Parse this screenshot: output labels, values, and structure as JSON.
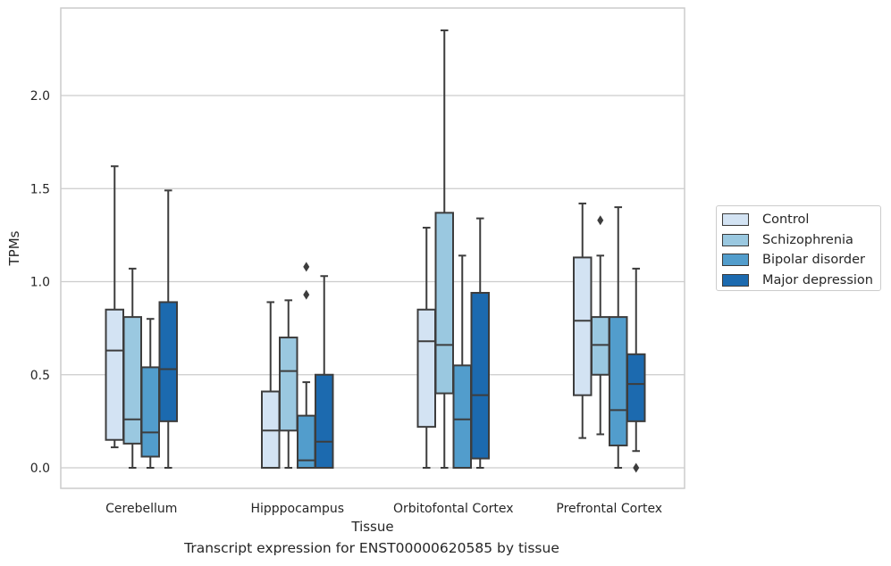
{
  "chart_data": {
    "type": "box",
    "title": "Transcript expression for ENST00000620585 by tissue",
    "xlabel": "Tissue",
    "ylabel": "TPMs",
    "ylim": [
      -0.11,
      2.48
    ],
    "yticks": [
      "0.0",
      "0.5",
      "1.0",
      "1.5",
      "2.0"
    ],
    "grid": "horizontal",
    "legend_position": "outside right",
    "categories": [
      "Cerebellum",
      "Hipppocampus",
      "Orbitofontal Cortex",
      "Prefrontal Cortex"
    ],
    "series": [
      {
        "name": "Control",
        "color": "#d3e3f3",
        "boxes": [
          {
            "whisker_low": 0.11,
            "q1": 0.15,
            "median": 0.63,
            "q3": 0.85,
            "whisker_high": 1.62,
            "outliers": []
          },
          {
            "whisker_low": 0.0,
            "q1": 0.0,
            "median": 0.2,
            "q3": 0.41,
            "whisker_high": 0.89,
            "outliers": []
          },
          {
            "whisker_low": 0.0,
            "q1": 0.22,
            "median": 0.68,
            "q3": 0.85,
            "whisker_high": 1.29,
            "outliers": []
          },
          {
            "whisker_low": 0.16,
            "q1": 0.39,
            "median": 0.79,
            "q3": 1.13,
            "whisker_high": 1.42,
            "outliers": []
          }
        ]
      },
      {
        "name": "Schizophrenia",
        "color": "#9ac8e0",
        "boxes": [
          {
            "whisker_low": 0.0,
            "q1": 0.13,
            "median": 0.26,
            "q3": 0.81,
            "whisker_high": 1.07,
            "outliers": []
          },
          {
            "whisker_low": 0.0,
            "q1": 0.2,
            "median": 0.52,
            "q3": 0.7,
            "whisker_high": 0.9,
            "outliers": []
          },
          {
            "whisker_low": 0.0,
            "q1": 0.4,
            "median": 0.66,
            "q3": 1.37,
            "whisker_high": 2.35,
            "outliers": []
          },
          {
            "whisker_low": 0.18,
            "q1": 0.5,
            "median": 0.66,
            "q3": 0.81,
            "whisker_high": 1.14,
            "outliers": [
              1.33
            ]
          }
        ]
      },
      {
        "name": "Bipolar disorder",
        "color": "#529dcc",
        "boxes": [
          {
            "whisker_low": 0.0,
            "q1": 0.06,
            "median": 0.19,
            "q3": 0.54,
            "whisker_high": 0.8,
            "outliers": []
          },
          {
            "whisker_low": 0.0,
            "q1": 0.0,
            "median": 0.04,
            "q3": 0.28,
            "whisker_high": 0.46,
            "outliers": [
              0.93,
              1.08
            ]
          },
          {
            "whisker_low": 0.0,
            "q1": 0.0,
            "median": 0.26,
            "q3": 0.55,
            "whisker_high": 1.14,
            "outliers": []
          },
          {
            "whisker_low": 0.0,
            "q1": 0.12,
            "median": 0.31,
            "q3": 0.81,
            "whisker_high": 1.4,
            "outliers": []
          }
        ]
      },
      {
        "name": "Major depression",
        "color": "#1c6aaf",
        "boxes": [
          {
            "whisker_low": 0.0,
            "q1": 0.25,
            "median": 0.53,
            "q3": 0.89,
            "whisker_high": 1.49,
            "outliers": []
          },
          {
            "whisker_low": 0.0,
            "q1": 0.0,
            "median": 0.14,
            "q3": 0.5,
            "whisker_high": 1.03,
            "outliers": []
          },
          {
            "whisker_low": 0.0,
            "q1": 0.05,
            "median": 0.39,
            "q3": 0.94,
            "whisker_high": 1.34,
            "outliers": []
          },
          {
            "whisker_low": 0.09,
            "q1": 0.25,
            "median": 0.45,
            "q3": 0.61,
            "whisker_high": 1.07,
            "outliers": [
              0.0
            ]
          }
        ]
      }
    ]
  }
}
